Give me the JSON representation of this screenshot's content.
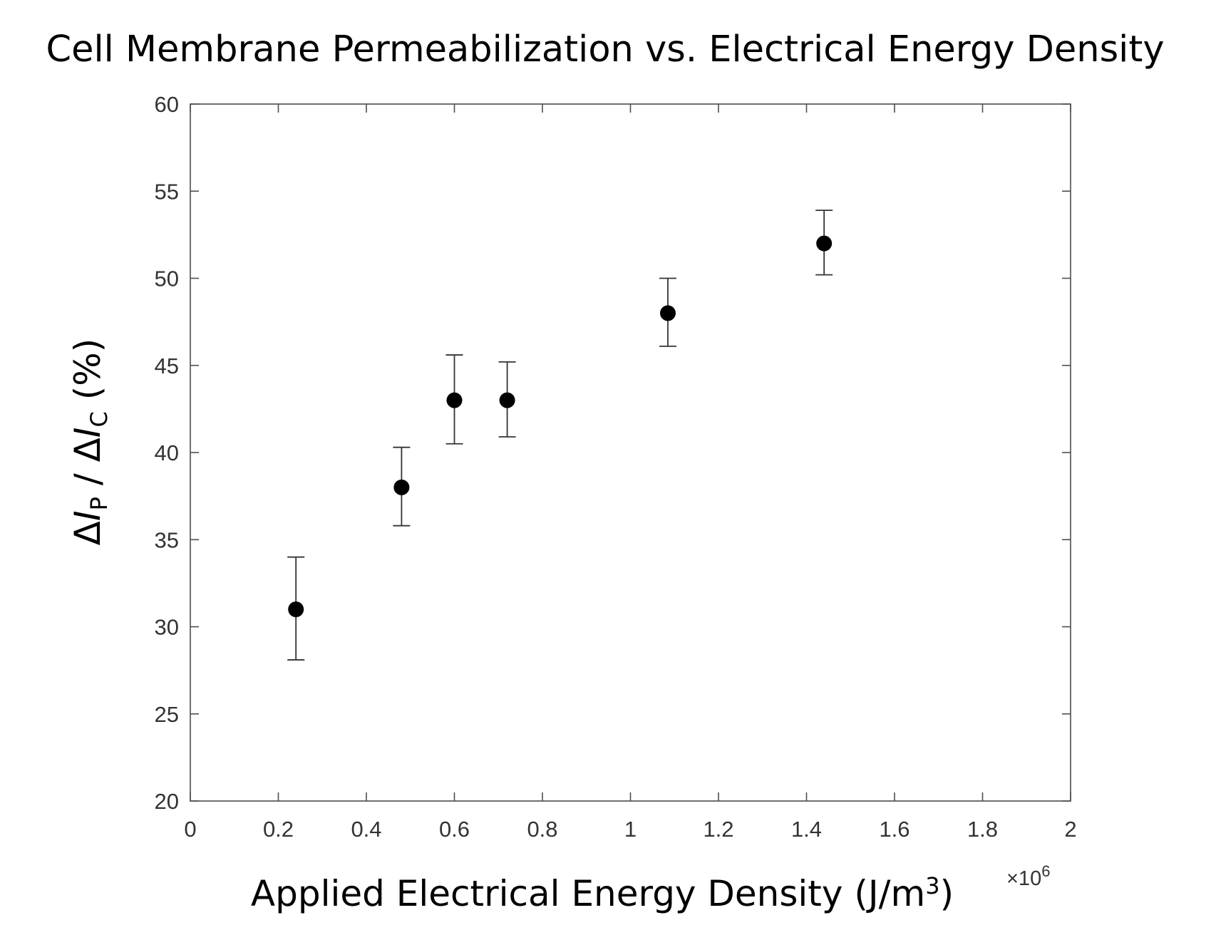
{
  "chart_data": {
    "type": "scatter",
    "title": "Cell Membrane Permeabilization vs. Electrical Energy Density",
    "xlabel": {
      "text": "Applied Electrical Energy Density (J/m",
      "superscript": "3",
      "suffix": ")"
    },
    "ylabel": {
      "delta": "Δ",
      "var1": "I",
      "sub1": "P",
      "separator": " / ",
      "var2": "I",
      "sub2": "C",
      "suffix": " (%)"
    },
    "x_multiplier": {
      "prefix": "×10",
      "exponent": "6"
    },
    "xlim": [
      0,
      2
    ],
    "ylim": [
      20,
      60
    ],
    "x_ticks": [
      0,
      0.2,
      0.4,
      0.6,
      0.8,
      1,
      1.2,
      1.4,
      1.6,
      1.8,
      2
    ],
    "x_tick_labels": [
      "0",
      "0.2",
      "0.4",
      "0.6",
      "0.8",
      "1",
      "1.2",
      "1.4",
      "1.6",
      "1.8",
      "2"
    ],
    "y_ticks": [
      20,
      25,
      30,
      35,
      40,
      45,
      50,
      55,
      60
    ],
    "y_tick_labels": [
      "20",
      "25",
      "30",
      "35",
      "40",
      "45",
      "50",
      "55",
      "60"
    ],
    "grid": false,
    "marker_color": "#000000",
    "series": [
      {
        "points": [
          {
            "x": 0.24,
            "y": 31,
            "err_low": 28.1,
            "err_high": 34.0
          },
          {
            "x": 0.48,
            "y": 38,
            "err_low": 35.8,
            "err_high": 40.3
          },
          {
            "x": 0.6,
            "y": 43,
            "err_low": 40.5,
            "err_high": 45.6
          },
          {
            "x": 0.72,
            "y": 43,
            "err_low": 40.9,
            "err_high": 45.2
          },
          {
            "x": 1.085,
            "y": 48,
            "err_low": 46.1,
            "err_high": 50.0
          },
          {
            "x": 1.44,
            "y": 52,
            "err_low": 50.2,
            "err_high": 53.9
          }
        ]
      }
    ]
  }
}
